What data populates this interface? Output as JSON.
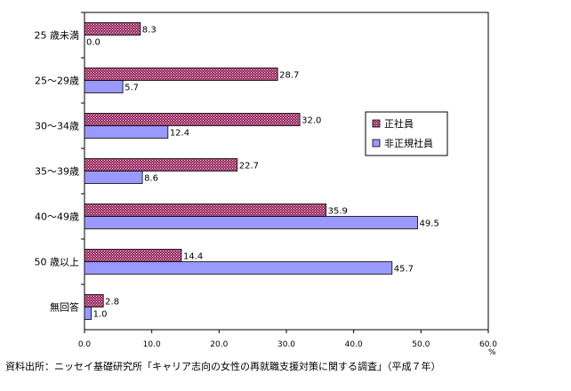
{
  "chart_data": {
    "type": "bar",
    "orientation": "horizontal",
    "categories": [
      "25 歳未満",
      "25～29歳",
      "30～34歳",
      "35～39歳",
      "40～49歳",
      "50 歳以上",
      "無回答"
    ],
    "series": [
      {
        "name": "正社員",
        "values": [
          8.3,
          28.7,
          32.0,
          22.7,
          35.9,
          14.4,
          2.8
        ],
        "color": "#993366",
        "pattern": "dotted"
      },
      {
        "name": "非正規社員",
        "values": [
          0.0,
          5.7,
          12.4,
          8.6,
          49.5,
          45.7,
          1.0
        ],
        "color": "#9999ff",
        "pattern": "solid"
      }
    ],
    "xlim": [
      0,
      60
    ],
    "xticks": [
      "0.0",
      "10.0",
      "20.0",
      "30.0",
      "40.0",
      "50.0",
      "60.0"
    ],
    "xlabel": "",
    "ylabel": "",
    "unit": "%",
    "grid": false,
    "legend_position": "right"
  },
  "source_note": "資料出所：ニッセイ基礎研究所「キャリア志向の女性の再就職支援対策に関する調査」（平成７年）"
}
